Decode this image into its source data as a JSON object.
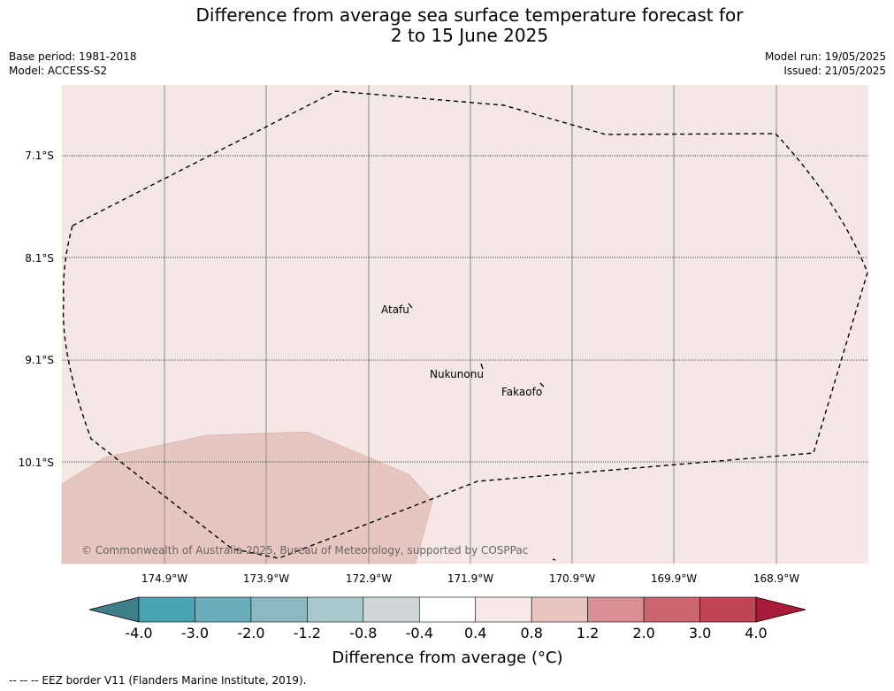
{
  "title": {
    "line1": "Difference from average sea surface temperature forecast for",
    "line2": "2 to 15 June 2025"
  },
  "meta": {
    "base_period": "Base period: 1981-2018",
    "model": "Model: ACCESS-S2",
    "model_run": "Model run: 19/05/2025",
    "issued": "Issued: 21/05/2025"
  },
  "map": {
    "lat_labels": [
      "7.1°S",
      "8.1°S",
      "9.1°S",
      "10.1°S"
    ],
    "lon_labels": [
      "174.9°W",
      "173.9°W",
      "172.9°W",
      "171.9°W",
      "170.9°W",
      "169.9°W",
      "168.9°W"
    ],
    "places": [
      "Atafu",
      "Nukunonu",
      "Fakaofo"
    ],
    "copyright": "© Commonwealth of Australia 2025, Bureau of Meteorology, supported by COSPPac",
    "colors": {
      "background_anomaly": "#f4e7e6",
      "warm_patch": "#e7c6c1"
    }
  },
  "colorbar": {
    "ticks": [
      "-4.0",
      "-3.0",
      "-2.0",
      "-1.2",
      "-0.8",
      "-0.4",
      "0.4",
      "0.8",
      "1.2",
      "2.0",
      "3.0",
      "4.0"
    ],
    "colors": [
      "#3d7f8b",
      "#4aa3b3",
      "#6aaebc",
      "#8cb8c2",
      "#a8c8cc",
      "#d0d6d8",
      "#ffffff",
      "#f6e8e6",
      "#e8c5c0",
      "#d98e94",
      "#cd6570",
      "#c04453",
      "#a81c3a"
    ],
    "label": "Difference from average (°C)"
  },
  "footer": "--  --  -- EEZ border V11 (Flanders Marine Institute, 2019)."
}
